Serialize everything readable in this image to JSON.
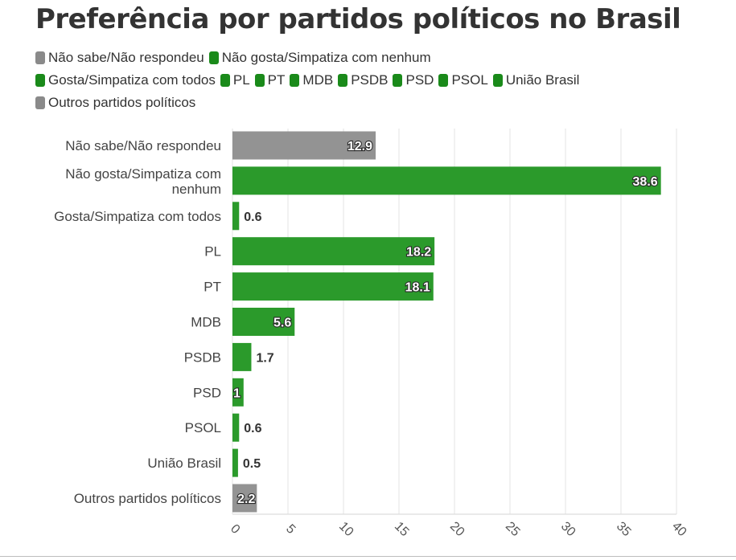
{
  "title": "Preferência por partidos políticos no Brasil",
  "colors": {
    "gray": "#939393",
    "green": "#2b9a2b",
    "legend_green": "#1a8a1a",
    "legend_gray": "#8a8a8a"
  },
  "legend": [
    {
      "label": "Não sabe/Não respondeu",
      "color": "gray"
    },
    {
      "label": "Não gosta/Simpatiza com nenhum",
      "color": "green"
    },
    {
      "label": "Gosta/Simpatiza com todos",
      "color": "green"
    },
    {
      "label": "PL",
      "color": "green"
    },
    {
      "label": "PT",
      "color": "green"
    },
    {
      "label": "MDB",
      "color": "green"
    },
    {
      "label": "PSDB",
      "color": "green"
    },
    {
      "label": "PSD",
      "color": "green"
    },
    {
      "label": "PSOL",
      "color": "green"
    },
    {
      "label": "União Brasil",
      "color": "green"
    },
    {
      "label": "Outros partidos políticos",
      "color": "gray"
    }
  ],
  "chart_data": {
    "type": "bar",
    "orientation": "horizontal",
    "title": "Preferência por partidos políticos no Brasil",
    "xlabel": "",
    "ylabel": "",
    "xlim": [
      0,
      40
    ],
    "xticks": [
      0,
      5,
      10,
      15,
      20,
      25,
      30,
      35,
      40
    ],
    "grid": true,
    "legend_position": "top-left",
    "categories": [
      "Não sabe/Não respondeu",
      "Não gosta/Simpatiza com nenhum",
      "Gosta/Simpatiza com todos",
      "PL",
      "PT",
      "MDB",
      "PSDB",
      "PSD",
      "PSOL",
      "União Brasil",
      "Outros partidos políticos"
    ],
    "values": [
      12.9,
      38.6,
      0.6,
      18.2,
      18.1,
      5.6,
      1.7,
      1,
      0.6,
      0.5,
      2.2
    ],
    "value_labels": [
      "12.9",
      "38.6",
      "0.6",
      "18.2",
      "18.1",
      "5.6",
      "1.7",
      "1",
      "0.6",
      "0.5",
      "2.2"
    ],
    "bar_colors": [
      "gray",
      "green",
      "green",
      "green",
      "green",
      "green",
      "green",
      "green",
      "green",
      "green",
      "gray"
    ]
  }
}
